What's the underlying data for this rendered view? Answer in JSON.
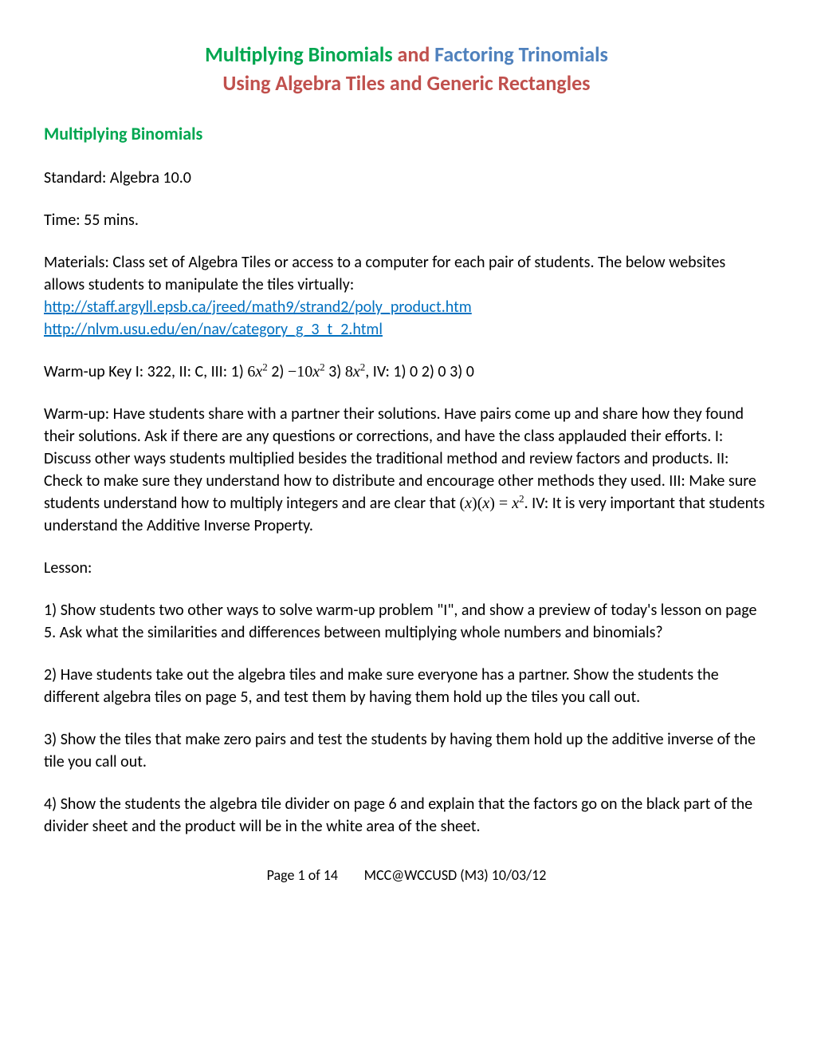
{
  "title": {
    "part1": "Multiplying Binomials",
    "part2": " and ",
    "part3": "Factoring Trinomials",
    "line2": "Using Algebra Tiles and Generic Rectangles"
  },
  "section_header": "Multiplying Binomials",
  "standard": "Standard:  Algebra 10.0",
  "time": "Time:  55 mins.",
  "materials": {
    "intro": "Materials:  Class set of Algebra Tiles or access to a computer for each pair of students.  The below websites allows students to manipulate the tiles virtually:",
    "link1": "http://staff.argyll.epsb.ca/jreed/math9/strand2/poly_product.htm",
    "link2": "http://nlvm.usu.edu/en/nav/category_g_3_t_2.html"
  },
  "warmup_key": {
    "prefix": "Warm-up Key  I:  322,  II:  C,  III:  1) ",
    "m1": "6",
    "mid1": "   2) ",
    "m2": "−10",
    "mid2": "   3) ",
    "m3": "8",
    "suffix": ",   IV:  1) 0   2) 0   3) 0"
  },
  "warmup": {
    "p1": "Warm-up:  Have students share with a partner their solutions.  Have pairs come up and share how they found their solutions.  Ask if there are any questions or corrections, and have the class applauded their efforts.  I:  Discuss other ways students multiplied besides the traditional method and review factors and products.  II:  Check to make sure they understand how to distribute and encourage other methods they used.  III:  Make sure students understand how to multiply integers and are clear that",
    "p2": ".  IV:  It is very important that students understand the Additive Inverse Property."
  },
  "lesson_label": "Lesson:",
  "lesson": {
    "l1": "1)  Show students two other ways to solve warm-up problem \"I\", and show a preview of today's lesson on page 5.  Ask what the similarities and differences between multiplying whole numbers and binomials?",
    "l2": "2)  Have students take out the algebra tiles and make sure everyone has a partner.  Show the students the different algebra tiles on page 5, and test them by having them hold up the tiles you call out.",
    "l3": "3)  Show the tiles that make zero pairs and test the students by having them hold up the additive inverse of the tile you call out.",
    "l4": "4)  Show the students the algebra tile divider on page 6 and explain that the factors go on the black part of the divider sheet and the product will be in the white area of the sheet."
  },
  "footer": {
    "page": "Page 1 of 14",
    "right": "MCC@WCCUSD (M3)   10/03/12"
  },
  "colors": {
    "green": "#00a650",
    "red": "#c0504d",
    "blue": "#4f81bd",
    "link": "#0070c0"
  }
}
